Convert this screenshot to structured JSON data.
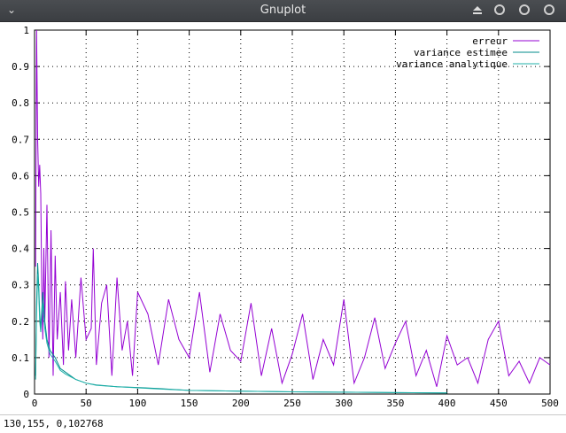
{
  "window": {
    "title": "Gnuplot",
    "menu_icon": "chevron-down-icon",
    "controls": [
      "eject-icon",
      "minimize-icon",
      "maximize-icon",
      "close-icon"
    ]
  },
  "status": {
    "coords": "130,155,  0,102768"
  },
  "colors": {
    "erreur": "#9400d3",
    "variance_estimee": "#008b8b",
    "variance_analytique": "#20b2aa"
  },
  "chart_data": {
    "type": "line",
    "title": "",
    "xlabel": "",
    "ylabel": "",
    "xlim": [
      0,
      500
    ],
    "ylim": [
      0,
      1
    ],
    "xticks": [
      0,
      50,
      100,
      150,
      200,
      250,
      300,
      350,
      400,
      450,
      500
    ],
    "yticks": [
      0,
      0.1,
      0.2,
      0.3,
      0.4,
      0.5,
      0.6,
      0.7,
      0.8,
      0.9,
      1
    ],
    "ytick_labels": [
      "0",
      "0.1",
      "0.2",
      "0.3",
      "0.4",
      "0.5",
      "0.6",
      "0.7",
      "0.8",
      "0.9",
      "1"
    ],
    "grid": true,
    "legend_position": "top-right",
    "series": [
      {
        "name": "erreur",
        "x": [
          1,
          2,
          3,
          4,
          5,
          6,
          7,
          8,
          9,
          10,
          12,
          14,
          16,
          18,
          20,
          22,
          25,
          28,
          30,
          33,
          36,
          40,
          45,
          50,
          55,
          57,
          60,
          65,
          70,
          75,
          80,
          85,
          90,
          95,
          100,
          110,
          120,
          130,
          140,
          150,
          160,
          170,
          180,
          190,
          200,
          210,
          220,
          230,
          240,
          250,
          260,
          270,
          280,
          290,
          300,
          310,
          320,
          330,
          340,
          350,
          360,
          370,
          380,
          390,
          400,
          410,
          420,
          430,
          440,
          450,
          460,
          470,
          480,
          490,
          500
        ],
        "values": [
          0.35,
          1.0,
          0.7,
          0.57,
          0.63,
          0.55,
          0.3,
          0.15,
          0.4,
          0.2,
          0.52,
          0.1,
          0.45,
          0.05,
          0.38,
          0.15,
          0.28,
          0.08,
          0.31,
          0.12,
          0.26,
          0.1,
          0.32,
          0.15,
          0.18,
          0.4,
          0.08,
          0.25,
          0.3,
          0.05,
          0.32,
          0.12,
          0.2,
          0.05,
          0.28,
          0.22,
          0.08,
          0.26,
          0.15,
          0.1,
          0.28,
          0.06,
          0.22,
          0.12,
          0.09,
          0.25,
          0.05,
          0.18,
          0.03,
          0.11,
          0.22,
          0.04,
          0.15,
          0.08,
          0.26,
          0.03,
          0.1,
          0.21,
          0.07,
          0.14,
          0.2,
          0.05,
          0.12,
          0.02,
          0.16,
          0.08,
          0.1,
          0.03,
          0.15,
          0.2,
          0.05,
          0.09,
          0.03,
          0.1,
          0.08
        ]
      },
      {
        "name": "variance estimee",
        "x": [
          1,
          2,
          3,
          4,
          5,
          6,
          8,
          10,
          12,
          15,
          20,
          25,
          30,
          40,
          50,
          60,
          80,
          100,
          120,
          150,
          200,
          250,
          300,
          350,
          400
        ],
        "values": [
          0.05,
          0.25,
          0.36,
          0.3,
          0.22,
          0.18,
          0.28,
          0.2,
          0.15,
          0.12,
          0.1,
          0.07,
          0.06,
          0.04,
          0.03,
          0.025,
          0.02,
          0.018,
          0.015,
          0.01,
          0.008,
          0.006,
          0.005,
          0.004,
          0.003
        ]
      },
      {
        "name": "variance analytique",
        "x": [
          1,
          2,
          3,
          4,
          5,
          6,
          8,
          10,
          12,
          15,
          20,
          25,
          30,
          40,
          50,
          60,
          80,
          100,
          120,
          150,
          200,
          250,
          300,
          350,
          400
        ],
        "values": [
          0.04,
          0.22,
          0.33,
          0.28,
          0.2,
          0.17,
          0.25,
          0.18,
          0.14,
          0.11,
          0.09,
          0.065,
          0.055,
          0.04,
          0.03,
          0.024,
          0.02,
          0.017,
          0.014,
          0.01,
          0.008,
          0.006,
          0.005,
          0.004,
          0.003
        ]
      }
    ]
  }
}
